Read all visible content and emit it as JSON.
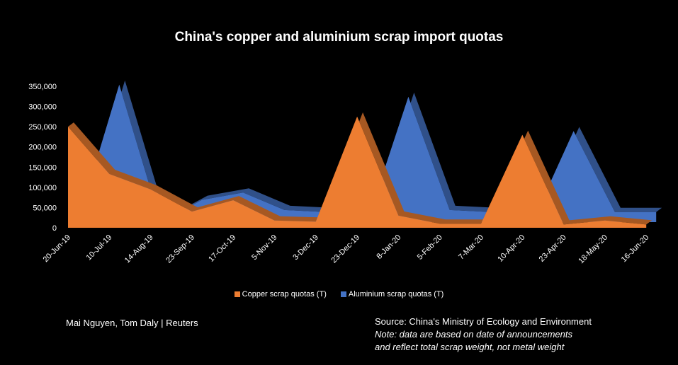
{
  "chart_data": {
    "type": "area",
    "title": "China's copper and aluminium scrap import quotas",
    "categories": [
      "20-Jun-19",
      "10-Jul-19",
      "14-Aug-19",
      "23-Sep-19",
      "17-Oct-19",
      "5-Nov-19",
      "3-Dec-19",
      "23-Dec-19",
      "8-Jan-20",
      "5-Feb-20",
      "7-Mar-20",
      "10-Apr-20",
      "23-Apr-20",
      "18-May-20",
      "16-Jun-20"
    ],
    "series": [
      {
        "name": "Aluminium scrap quotas (T)",
        "color": "#4472C4",
        "values": [
          0,
          340000,
          0,
          55000,
          73000,
          30000,
          25000,
          0,
          310000,
          30000,
          25000,
          0,
          225000,
          25000,
          25000
        ]
      },
      {
        "name": "Copper scrap quotas (T)",
        "color": "#ED7D31",
        "values": [
          250000,
          133000,
          95000,
          40000,
          68000,
          18000,
          15000,
          275000,
          30000,
          10000,
          10000,
          230000,
          8000,
          18000,
          8000
        ]
      }
    ],
    "yticks": [
      "0",
      "50,000",
      "100,000",
      "150,000",
      "200,000",
      "250,000",
      "300,000",
      "350,000"
    ],
    "ylim": [
      0,
      350000
    ],
    "legend_position": "bottom"
  },
  "footer": {
    "credit": "Mai Nguyen, Tom Daly | Reuters",
    "source": "Source: China's Ministry of Ecology and Environment",
    "note_line1": "Note: data are based on date of announcements",
    "note_line2": "and reflect total scrap weight, not metal weight"
  }
}
